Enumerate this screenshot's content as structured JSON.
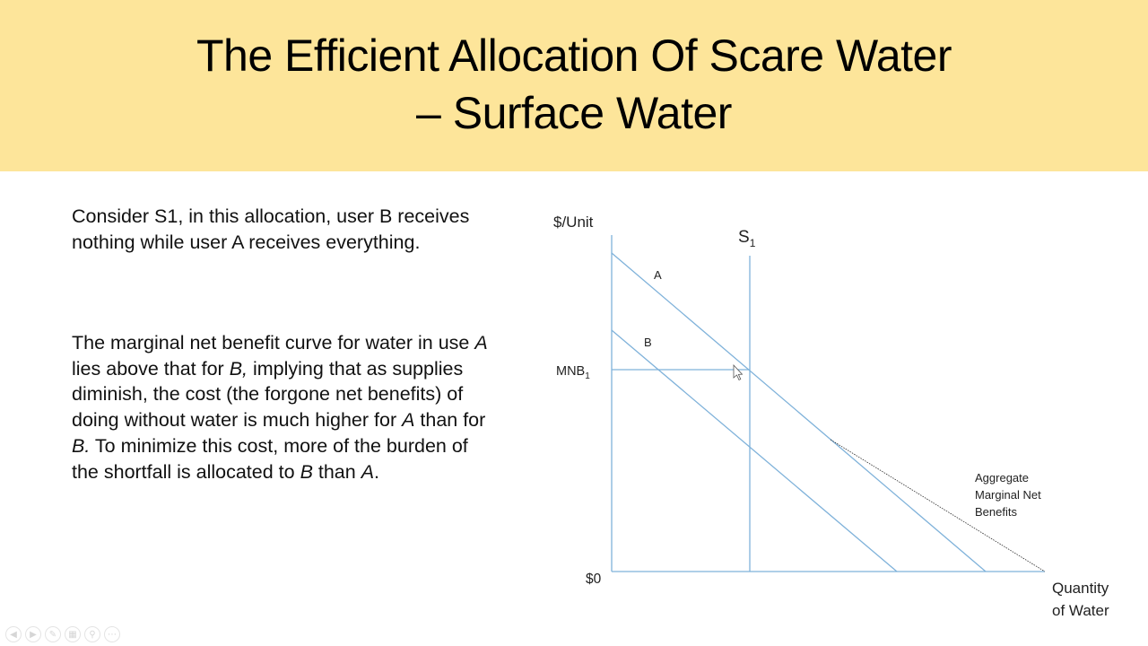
{
  "slide": {
    "title_line1": "The Efficient Allocation Of Scare Water",
    "title_line2": "– Surface Water",
    "paragraph1": "Consider S1, in this allocation, user B receives nothing while user A receives everything.",
    "paragraph2": {
      "p1": "The marginal net benefit curve for water in use ",
      "a1": "A",
      "p2": " lies above that for ",
      "b1": "B,",
      "p3": " implying that as supplies diminish, the cost (the forgone net benefits) of doing without water is much higher for ",
      "a2": "A",
      "p4": " than for ",
      "b2": "B.",
      "p5": " To minimize this cost, more of the burden of the shortfall is allocated to ",
      "b3": "B",
      "p6": " than ",
      "a3": "A",
      "p7": "."
    }
  },
  "diagram": {
    "y_axis_label": "$/Unit",
    "x_axis_label_line1": "Quantity",
    "x_axis_label_line2": "of Water",
    "origin_label": "$0",
    "supply_label_main": "S",
    "supply_label_sub": "1",
    "mnb_label_main": "MNB",
    "mnb_label_sub": "1",
    "curve_a_label": "A",
    "curve_b_label": "B",
    "aggregate_label_line1": "Aggregate",
    "aggregate_label_line2": "Marginal Net",
    "aggregate_label_line3": "Benefits",
    "line_color": "#7fb2da",
    "aggregate_color": "#333333"
  },
  "toolbar": {
    "buttons": [
      "previous-icon",
      "next-icon",
      "pen-icon",
      "slides-icon",
      "zoom-icon",
      "more-icon"
    ]
  }
}
